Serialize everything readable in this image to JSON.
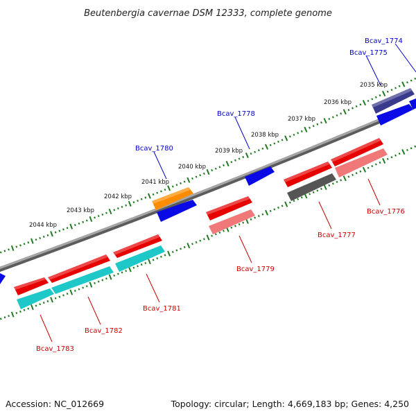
{
  "title": "Beutenbergia cavernae DSM 12333, complete genome",
  "accession": "Accession: NC_012669",
  "topology": "Topology: circular; Length: 4,669,183 bp; Genes: 4,250",
  "colors": {
    "backbone": "#8c8c8c",
    "tick": "#1f7a1f",
    "forward_label": "#0000cc",
    "reverse_label": "#cc0000"
  },
  "kbp_ticks": [
    "2044 kbp",
    "2043 kbp",
    "2042 kbp",
    "2041 kbp",
    "2040 kbp",
    "2039 kbp",
    "2038 kbp",
    "2037 kbp",
    "2036 kbp",
    "2035 kbp"
  ],
  "labels": {
    "forward": [
      "Bcav_1774",
      "Bcav_1775",
      "Bcav_1778",
      "Bcav_1780"
    ],
    "reverse": [
      "Bcav_1776",
      "Bcav_1777",
      "Bcav_1779",
      "Bcav_1781",
      "Bcav_1782",
      "Bcav_1783"
    ]
  },
  "features": [
    {
      "track": "fwd-inner",
      "color": "#0a0ae6"
    },
    {
      "track": "fwd-inner",
      "color": "#0a0ae6"
    },
    {
      "track": "fwd-inner",
      "color": "#0a0ae6"
    },
    {
      "track": "fwd-outer",
      "color": "#ff8c00"
    },
    {
      "track": "fwd-outer",
      "color": "#3a3a8c"
    },
    {
      "track": "rev-inner",
      "color": "#e60000"
    },
    {
      "track": "rev-inner",
      "color": "#e60000"
    },
    {
      "track": "rev-inner",
      "color": "#e60000"
    },
    {
      "track": "rev-inner",
      "color": "#e60000"
    },
    {
      "track": "rev-inner",
      "color": "#e60000"
    },
    {
      "track": "rev-inner",
      "color": "#e60000"
    },
    {
      "track": "rev-outer",
      "color": "#f07878"
    },
    {
      "track": "rev-outer",
      "color": "#f07878"
    },
    {
      "track": "rev-outer",
      "color": "#555555"
    },
    {
      "track": "rev-outer",
      "color": "#1ec8c8"
    },
    {
      "track": "rev-outer",
      "color": "#1ec8c8"
    },
    {
      "track": "rev-outer",
      "color": "#1ec8c8"
    }
  ]
}
